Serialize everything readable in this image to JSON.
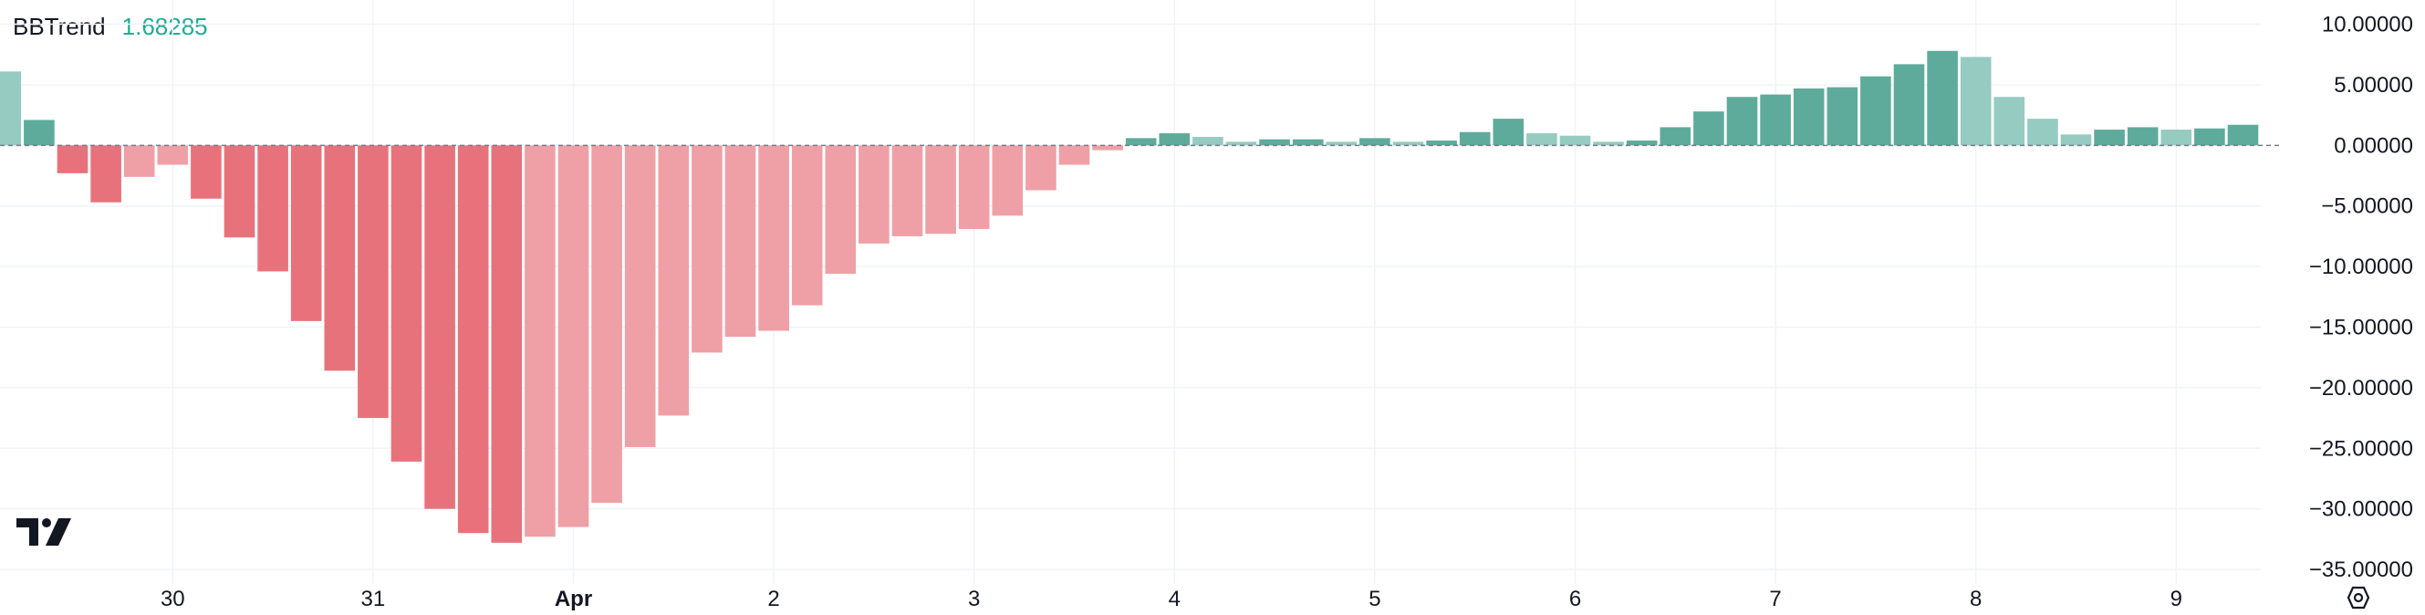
{
  "indicator": {
    "name": "BBTrend",
    "value": "1.68285"
  },
  "colors": {
    "pos_strong": "#5fab9b",
    "pos_weak": "#95cbc0",
    "neg_strong": "#e8727c",
    "neg_weak": "#eea0a6",
    "grid": "#f0f3fa",
    "zero_line": "#787b86",
    "value_color": "#22ab94"
  },
  "icons": {
    "logo": "tradingview-logo-icon",
    "settings": "settings-hexagon-icon"
  },
  "chart_data": {
    "type": "bar",
    "title": "BBTrend",
    "xlabel": "",
    "ylabel": "",
    "ylim": [
      -36.2,
      12.0
    ],
    "grid": true,
    "x_ticks": [
      "30",
      "31",
      "Apr",
      "2",
      "3",
      "4",
      "5",
      "6",
      "7",
      "8",
      "9"
    ],
    "x_tick_positions": [
      5.5,
      11.5,
      17.5,
      23.5,
      29.5,
      35.5,
      41.5,
      47.5,
      53.5,
      59.5,
      65.5
    ],
    "x_tick_bold": [
      "Apr"
    ],
    "y_ticks": [
      "10.00000",
      "5.00000",
      "0.00000",
      "−5.00000",
      "−10.00000",
      "−15.00000",
      "−20.00000",
      "−25.00000",
      "−30.00000",
      "−35.00000"
    ],
    "y_tick_values": [
      10,
      5,
      0,
      -5,
      -10,
      -15,
      -20,
      -25,
      -30,
      -35
    ],
    "values": [
      6.1,
      2.1,
      -2.3,
      -4.7,
      -2.6,
      -1.6,
      -4.4,
      -7.6,
      -10.4,
      -14.5,
      -18.6,
      -22.5,
      -26.1,
      -30.0,
      -32.0,
      -32.8,
      -32.3,
      -31.5,
      -29.5,
      -24.9,
      -22.3,
      -17.1,
      -15.8,
      -15.3,
      -13.2,
      -10.6,
      -8.1,
      -7.5,
      -7.3,
      -6.9,
      -5.8,
      -3.7,
      -1.6,
      -0.4,
      0.6,
      1.0,
      0.7,
      0.3,
      0.5,
      0.5,
      0.3,
      0.6,
      0.3,
      0.4,
      1.1,
      2.2,
      1.0,
      0.8,
      0.3,
      0.4,
      1.5,
      2.8,
      4.0,
      4.2,
      4.7,
      4.8,
      5.7,
      6.7,
      7.8,
      7.3,
      4.0,
      2.2,
      0.9,
      1.3,
      1.5,
      1.3,
      1.4,
      1.7
    ],
    "bar_shades": [
      "weak",
      "strong",
      "strong",
      "strong",
      "weak",
      "weak",
      "strong",
      "strong",
      "strong",
      "strong",
      "strong",
      "strong",
      "strong",
      "strong",
      "strong",
      "strong",
      "weak",
      "weak",
      "weak",
      "weak",
      "weak",
      "weak",
      "weak",
      "weak",
      "weak",
      "weak",
      "weak",
      "weak",
      "weak",
      "weak",
      "weak",
      "weak",
      "weak",
      "weak",
      "strong",
      "strong",
      "weak",
      "weak",
      "strong",
      "strong",
      "weak",
      "strong",
      "weak",
      "strong",
      "strong",
      "strong",
      "weak",
      "weak",
      "weak",
      "strong",
      "strong",
      "strong",
      "strong",
      "strong",
      "strong",
      "strong",
      "strong",
      "strong",
      "strong",
      "weak",
      "weak",
      "weak",
      "weak",
      "strong",
      "strong",
      "weak",
      "strong",
      "strong"
    ]
  }
}
